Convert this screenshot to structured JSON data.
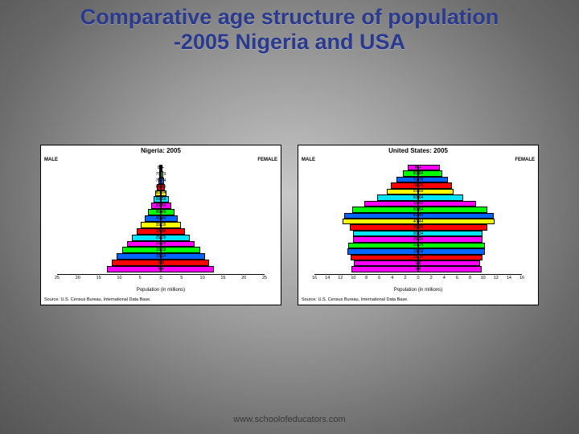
{
  "title_line1": "Comparative age structure of population",
  "title_line2": "-2005 Nigeria and USA",
  "footer_text": "www.schoolofeducators.com",
  "side_male": "MALE",
  "side_female": "FEMALE",
  "xaxis_label": "Population (in millions)",
  "source_text": "Source: U.S. Census Bureau, International Data Base.",
  "band_colors": [
    "#ff00ff",
    "#00ff00",
    "#0066ff",
    "#ff0000",
    "#ffff00",
    "#00e5ff",
    "#ff00ff",
    "#00ff00",
    "#0066ff",
    "#ffff00",
    "#ff0000",
    "#00e5ff",
    "#ff00ff",
    "#00ff00",
    "#0066ff",
    "#ff0000",
    "#ff00ff"
  ],
  "age_labels": [
    "80+",
    "75-79",
    "70-74",
    "65-69",
    "60-64",
    "55-59",
    "50-54",
    "45-49",
    "40-44",
    "35-39",
    "30-34",
    "25-29",
    "20-24",
    "15-19",
    "10-14",
    "5-9",
    "0-4"
  ],
  "nigeria": {
    "title": "Nigeria: 2005",
    "xlim": 25,
    "ticks": [
      25,
      20,
      15,
      10,
      5,
      0,
      5,
      10,
      15,
      20,
      25
    ],
    "male": [
      0.2,
      0.4,
      0.6,
      0.9,
      1.3,
      1.8,
      2.4,
      3.1,
      3.9,
      4.8,
      5.8,
      6.9,
      8.1,
      9.3,
      10.6,
      11.8,
      13.0
    ],
    "female": [
      0.3,
      0.5,
      0.7,
      1.0,
      1.4,
      1.9,
      2.5,
      3.2,
      4.0,
      4.9,
      5.9,
      7.0,
      8.2,
      9.4,
      10.6,
      11.7,
      12.8
    ]
  },
  "usa": {
    "title": "United States: 2005",
    "xlim": 16,
    "ticks": [
      16,
      14,
      12,
      10,
      8,
      6,
      4,
      2,
      0,
      2,
      4,
      6,
      8,
      10,
      12,
      14,
      16
    ],
    "age_labels_override": [
      "85+",
      "80-84",
      "75-79",
      "70-74",
      "65-69",
      "60-64",
      "55-59",
      "50-54",
      "45-49",
      "40-44",
      "35-39",
      "30-34",
      "25-29",
      "20-24",
      "15-19",
      "10-14",
      "5-9",
      "0-4"
    ],
    "male": [
      1.6,
      2.4,
      3.4,
      4.2,
      4.8,
      6.3,
      8.3,
      10.2,
      11.4,
      11.6,
      10.6,
      10.0,
      10.1,
      10.8,
      10.9,
      10.4,
      9.9,
      10.3
    ],
    "female": [
      3.4,
      3.7,
      4.6,
      5.2,
      5.5,
      7.0,
      8.9,
      10.7,
      11.7,
      11.8,
      10.7,
      9.9,
      9.9,
      10.3,
      10.3,
      9.9,
      9.5,
      9.8
    ]
  }
}
